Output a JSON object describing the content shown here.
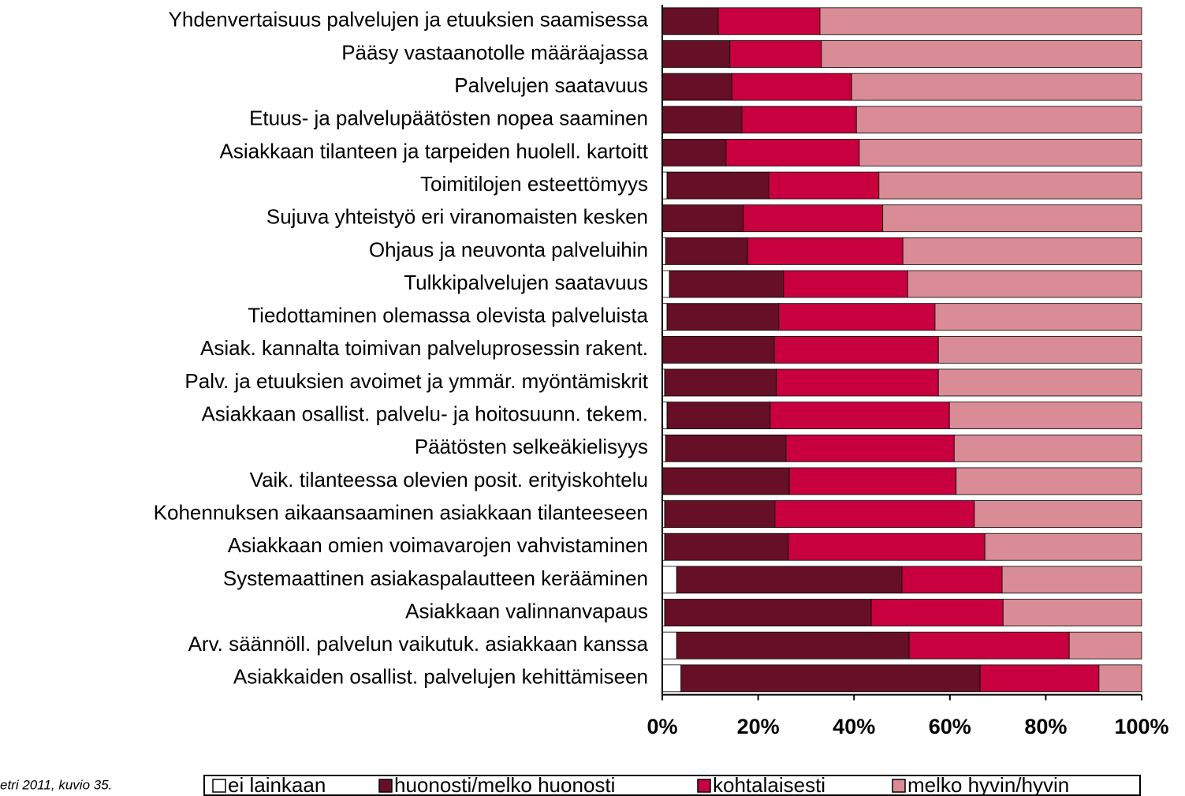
{
  "chart_data": {
    "type": "bar",
    "orientation": "horizontal",
    "stacked": true,
    "source": "etri 2011, kuvio 35.",
    "categories": [
      "Yhdenvertaisuus palvelujen ja etuuksien saamisessa",
      "Pääsy vastaanotolle määräajassa",
      "Palvelujen saatavuus",
      "Etuus- ja palvelupäätösten nopea saaminen",
      "Asiakkaan tilanteen ja tarpeiden huolell. kartoitt",
      "Toimitilojen esteettömyys",
      "Sujuva yhteistyö eri viranomaisten kesken",
      "Ohjaus ja neuvonta palveluihin",
      "Tulkkipalvelujen saatavuus",
      "Tiedottaminen olemassa olevista palveluista",
      "Asiak. kannalta toimivan palveluprosessin rakent.",
      "Palv. ja etuuksien avoimet ja ymmär. myöntämiskrit",
      "Asiakkaan osallist. palvelu- ja hoitosuunn. tekem.",
      "Päätösten selkeäkielisyys",
      "Vaik. tilanteessa olevien posit. erityiskohtelu",
      "Kohennuksen aikaansaaminen asiakkaan tilanteeseen",
      "Asiakkaan omien voimavarojen vahvistaminen",
      "Systemaattinen asiakaspalautteen kerääminen",
      "Asiakkaan valinnanvapaus",
      "Arv. säännöll. palvelun vaikutuk. asiakkaan kanssa",
      "Asiakkaiden osallist. palvelujen kehittämiseen"
    ],
    "series": [
      {
        "name": "ei lainkaan",
        "color": "#ffffff",
        "values": [
          0,
          0,
          0,
          0,
          0,
          1,
          0,
          0.7,
          1.5,
          1,
          0,
          0.5,
          1,
          0.7,
          0,
          0.5,
          0.5,
          3,
          0.5,
          3,
          3.9
        ]
      },
      {
        "name": "huonosti/melko huonosti",
        "color": "#660f26",
        "values": [
          11.7,
          14.1,
          14.5,
          16.6,
          13.3,
          21.2,
          16.9,
          17.1,
          23.8,
          23.3,
          23.4,
          23.3,
          21.5,
          25.1,
          26.5,
          23,
          25.8,
          47,
          43.1,
          48.5,
          62.4
        ]
      },
      {
        "name": "kohtalaisesti",
        "color": "#c8003f",
        "values": [
          21.2,
          19.1,
          25,
          23.9,
          27.8,
          23,
          29.1,
          32.4,
          25.9,
          32.6,
          34.2,
          33.8,
          37.4,
          35.1,
          34.8,
          41.6,
          41,
          20.9,
          27.5,
          33.4,
          24.8
        ]
      },
      {
        "name": "melko hyvin/hyvin",
        "color": "#d98c96",
        "values": [
          67.1,
          66.8,
          60.5,
          59.5,
          58.9,
          54.8,
          54,
          49.8,
          48.8,
          43.1,
          42.4,
          42.4,
          40.1,
          39.1,
          38.7,
          34.9,
          32.7,
          29.1,
          28.9,
          15.1,
          8.9
        ]
      }
    ],
    "xlim": [
      0,
      100
    ],
    "xticks": [
      {
        "value": 0,
        "label": "0%"
      },
      {
        "value": 20,
        "label": "20%"
      },
      {
        "value": 40,
        "label": "40%"
      },
      {
        "value": 60,
        "label": "60%"
      },
      {
        "value": 80,
        "label": "80%"
      },
      {
        "value": 100,
        "label": "100%"
      }
    ],
    "legend": "bottom"
  }
}
